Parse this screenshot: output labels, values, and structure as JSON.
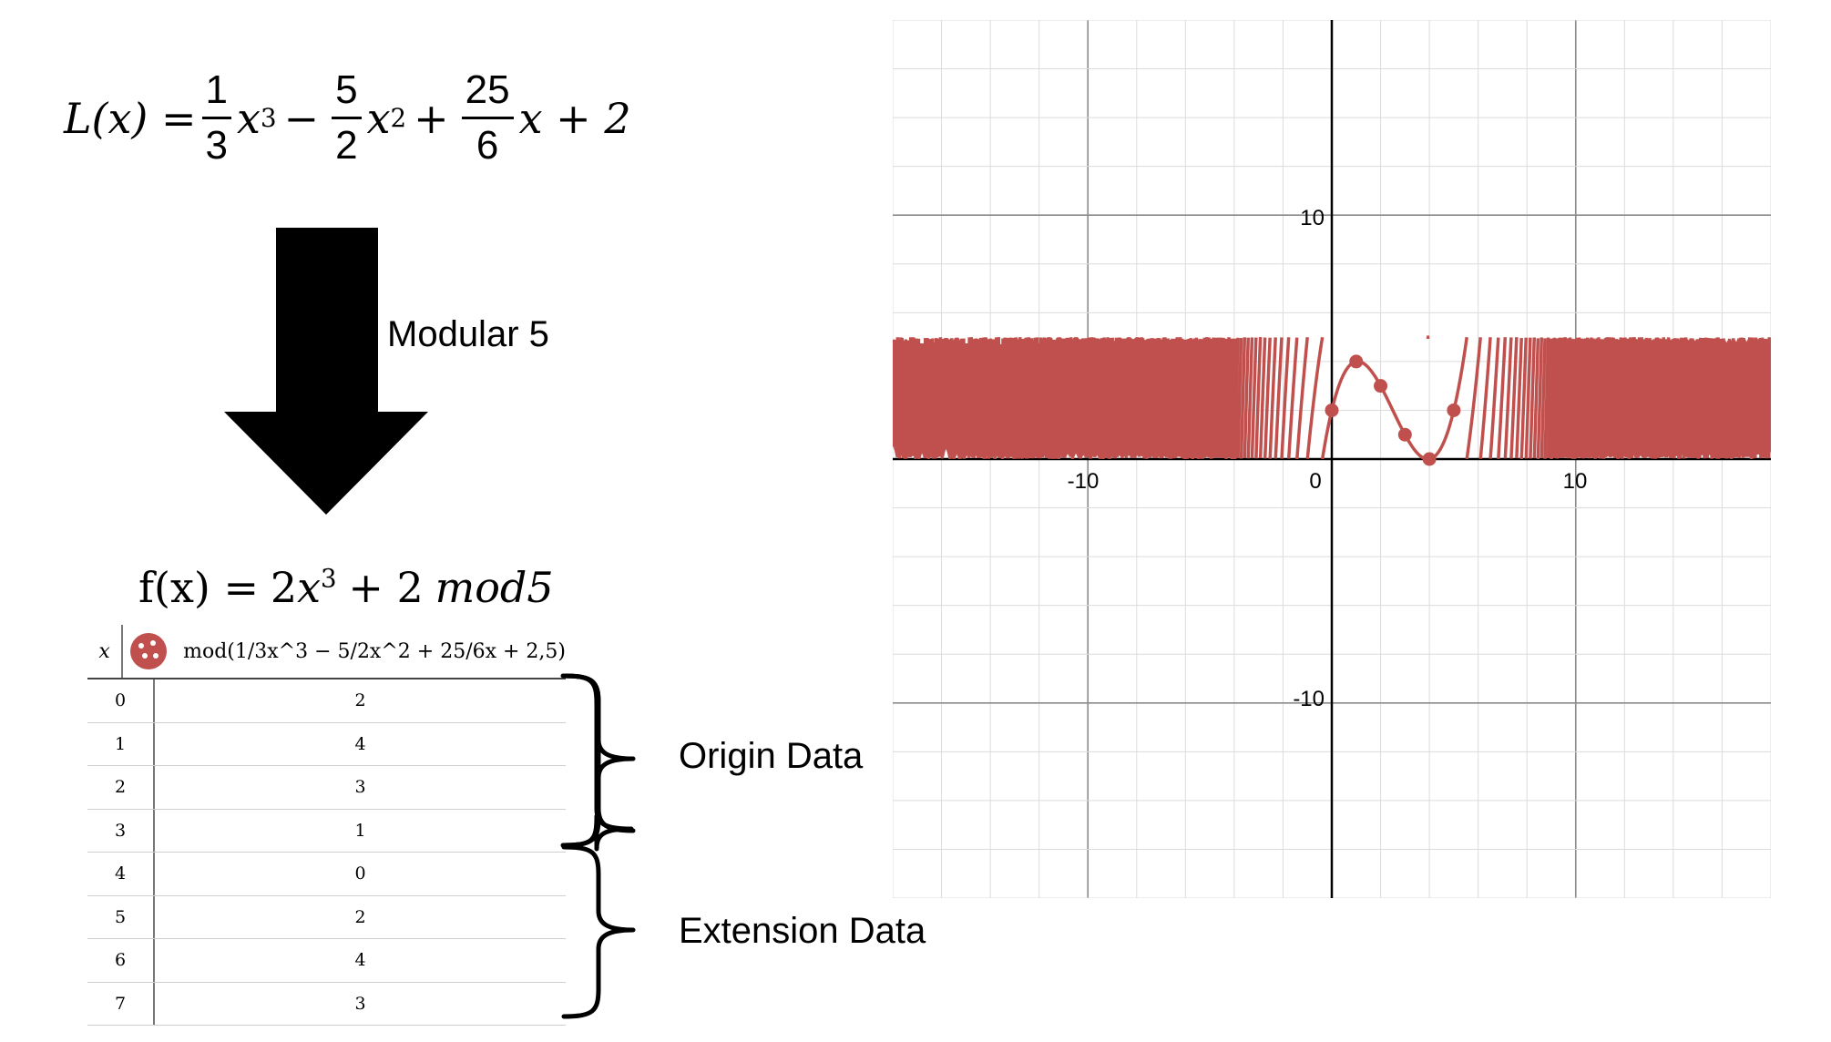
{
  "formula_l": {
    "lhs": "L(x) =",
    "t1_num": "1",
    "t1_den": "3",
    "t1_var": "x",
    "t1_exp": "3",
    "op1": "−",
    "t2_num": "5",
    "t2_den": "2",
    "t2_var": "x",
    "t2_exp": "2",
    "op2": "+",
    "t3_num": "25",
    "t3_den": "6",
    "t3_rest": "x + 2"
  },
  "arrow_label": "Modular 5",
  "formula_f": {
    "lhs": "f(x) =",
    "coef": "2",
    "var": "x",
    "exp": "3",
    "rest": "+ 2",
    "mod": "mod5"
  },
  "table": {
    "col_x": "x",
    "col_expr": "mod(1/3x^3 − 5/2x^2 + 25/6x + 2,5)",
    "rows": [
      {
        "x": "0",
        "y": "2"
      },
      {
        "x": "1",
        "y": "4"
      },
      {
        "x": "2",
        "y": "3"
      },
      {
        "x": "3",
        "y": "1"
      },
      {
        "x": "4",
        "y": "0"
      },
      {
        "x": "5",
        "y": "2"
      },
      {
        "x": "6",
        "y": "4"
      },
      {
        "x": "7",
        "y": "3"
      }
    ]
  },
  "brace_labels": {
    "origin": "Origin Data",
    "extension": "Extension Data"
  },
  "graph": {
    "curve_color": "#c0504d",
    "x_range": [
      -18,
      18
    ],
    "y_range": [
      -18,
      18
    ],
    "grid_minor": 2,
    "grid_major": 10,
    "tick_labels": {
      "x_neg": "-10",
      "origin": "0",
      "x_pos": "10",
      "y_pos": "10",
      "y_neg": "-10"
    },
    "points": [
      {
        "x": 0,
        "y": 2
      },
      {
        "x": 1,
        "y": 4
      },
      {
        "x": 2,
        "y": 3
      },
      {
        "x": 3,
        "y": 1
      },
      {
        "x": 4,
        "y": 0
      },
      {
        "x": 5,
        "y": 2
      }
    ]
  }
}
